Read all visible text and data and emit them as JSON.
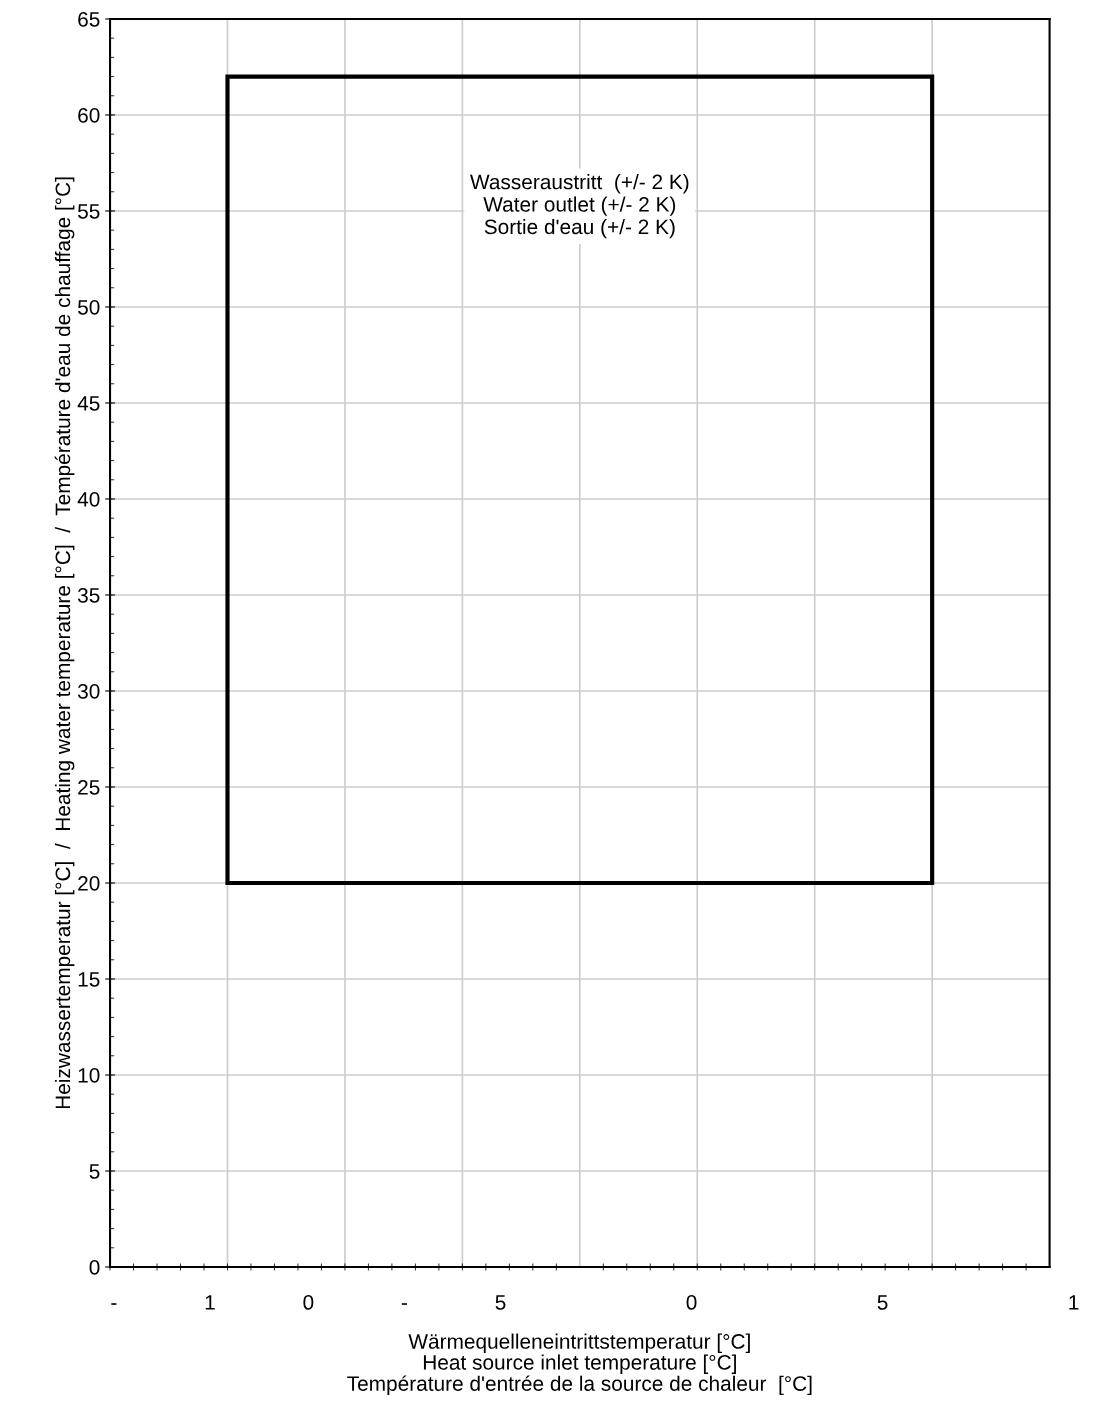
{
  "chart_data": {
    "type": "bar",
    "xlabel": "Wärmequelleneintrittstemperatur [°C]\nHeat source inlet temperature [°C]\nTempérature d'entrée de la source de chaleur  [°C]",
    "ylabel": "Heizwassertemperatur [°C]  /  Heating water temperature [°C]  /  Température d'eau de chauffage [°C]",
    "categories": [
      null
    ],
    "series": [
      {
        "color": "#000000",
        "base": [
          20
        ],
        "values": [
          42
        ]
      }
    ],
    "ylim": [
      0,
      65
    ],
    "yticks": [
      0,
      5,
      10,
      15,
      20,
      25,
      30,
      35,
      40,
      45,
      50,
      55,
      60,
      65
    ],
    "grid": true,
    "annotations": [
      "Wasseraustritt  (+/- 2 K)\nWater outlet (+/- 2 K)\nSortie d'eau (+/- 2 K)",
      "-               1               0               -               5                               0                               5                               1"
    ]
  }
}
